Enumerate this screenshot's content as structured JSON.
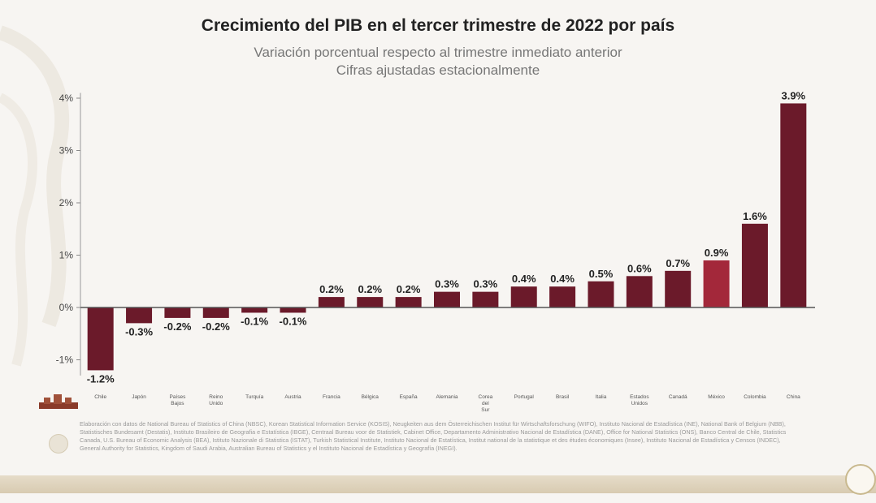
{
  "header": {
    "title": "Crecimiento del PIB en el tercer trimestre de 2022 por país",
    "subtitle1": "Variación porcentual respecto al trimestre inmediato anterior",
    "subtitle2": "Cifras ajustadas estacionalmente"
  },
  "footnote": "Elaboración con datos de National Bureau of Statistics of China (NBSC), Korean Statistical Information Service (KOSIS), Neugkeiten aus dem Österreichischen Institut für Wirtschaftsforschung (WIFO), Instituto Nacional de Estadística (INE), National Bank of Belgium (NBB), Statistisches Bundesamt (Destatis), Instituto Brasileiro de Geografia e Estatística (IBGE), Centraal Bureau voor de Statistiek, Cabinet Office, Departamento Administrativo Nacional de Estadística (DANE), Office for National Statistics (ONS), Banco Central de Chile, Statistics Canada, U.S. Bureau of Economic Analysis (BEA), Istituto Nazionale di Statistica (ISTAT), Turkish Statistical Institute, Instituto Nacional de Estatística, Institut national de la statistique et des études économiques (Insee), Instituto Nacional de Estadística y Censos (INDEC), General Authority for Statistics, Kingdom of Saudi Arabia, Australian Bureau of Statistics y el Instituto Nacional de Estadística y Geografía (INEGI).",
  "colors": {
    "bar": "#6b1a2a",
    "highlight": "#a3283a",
    "axis": "#555555",
    "text": "#222222"
  },
  "chart_data": {
    "type": "bar",
    "title": "Crecimiento del PIB en el tercer trimestre de 2022 por país",
    "categories": [
      "Chile",
      "Japón",
      "Países Bajos",
      "Reino Unido",
      "Turquía",
      "Austria",
      "Francia",
      "Bélgica",
      "España",
      "Alemania",
      "Corea del Sur",
      "Portugal",
      "Brasil",
      "Italia",
      "Estados Unidos",
      "Canadá",
      "México",
      "Colombia",
      "China"
    ],
    "values": [
      -1.2,
      -0.3,
      -0.2,
      -0.2,
      -0.1,
      -0.1,
      0.2,
      0.2,
      0.2,
      0.3,
      0.3,
      0.4,
      0.4,
      0.5,
      0.6,
      0.7,
      0.9,
      1.6,
      3.9
    ],
    "value_labels": [
      "-1.2%",
      "-0.3%",
      "-0.2%",
      "-0.2%",
      "-0.1%",
      "-0.1%",
      "0.2%",
      "0.2%",
      "0.2%",
      "0.3%",
      "0.3%",
      "0.4%",
      "0.4%",
      "0.5%",
      "0.6%",
      "0.7%",
      "0.9%",
      "1.6%",
      "3.9%"
    ],
    "highlight": "México",
    "yticks": [
      -1,
      0,
      1,
      2,
      3,
      4
    ],
    "ytick_labels": [
      "-1%",
      "0%",
      "1%",
      "2%",
      "3%",
      "4%"
    ],
    "ylim": [
      -1.3,
      4.1
    ],
    "grid": false
  }
}
